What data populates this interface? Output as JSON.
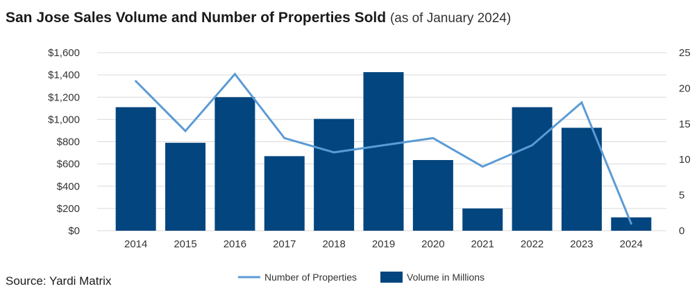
{
  "title": "San Jose Sales Volume and Number of Properties Sold",
  "subtitle": "(as of January 2024)",
  "source": "Source: Yardi Matrix",
  "colors": {
    "bar": "#03457e",
    "line": "#5b9bd5",
    "grid": "#d9d9d9"
  },
  "chart_data": {
    "type": "bar",
    "categories": [
      "2014",
      "2015",
      "2016",
      "2017",
      "2018",
      "2019",
      "2020",
      "2021",
      "2022",
      "2023",
      "2024"
    ],
    "series": [
      {
        "name": "Volume in Millions",
        "type": "bar",
        "axis": "left",
        "values": [
          1110,
          790,
          1200,
          670,
          1005,
          1425,
          635,
          200,
          1110,
          925,
          120
        ]
      },
      {
        "name": "Number of Properties",
        "type": "line",
        "axis": "right",
        "values": [
          21,
          14,
          22,
          13,
          11,
          12,
          13,
          9,
          12,
          18,
          1
        ]
      }
    ],
    "y_left": {
      "min": 0,
      "max": 1600,
      "ticks": [
        "$0",
        "$200",
        "$400",
        "$600",
        "$800",
        "$1,000",
        "$1,200",
        "$1,400",
        "$1,600"
      ]
    },
    "y_right": {
      "min": 0,
      "max": 25,
      "ticks": [
        "0",
        "5",
        "10",
        "15",
        "20",
        "25"
      ]
    },
    "grid": true,
    "legend_position": "bottom"
  }
}
